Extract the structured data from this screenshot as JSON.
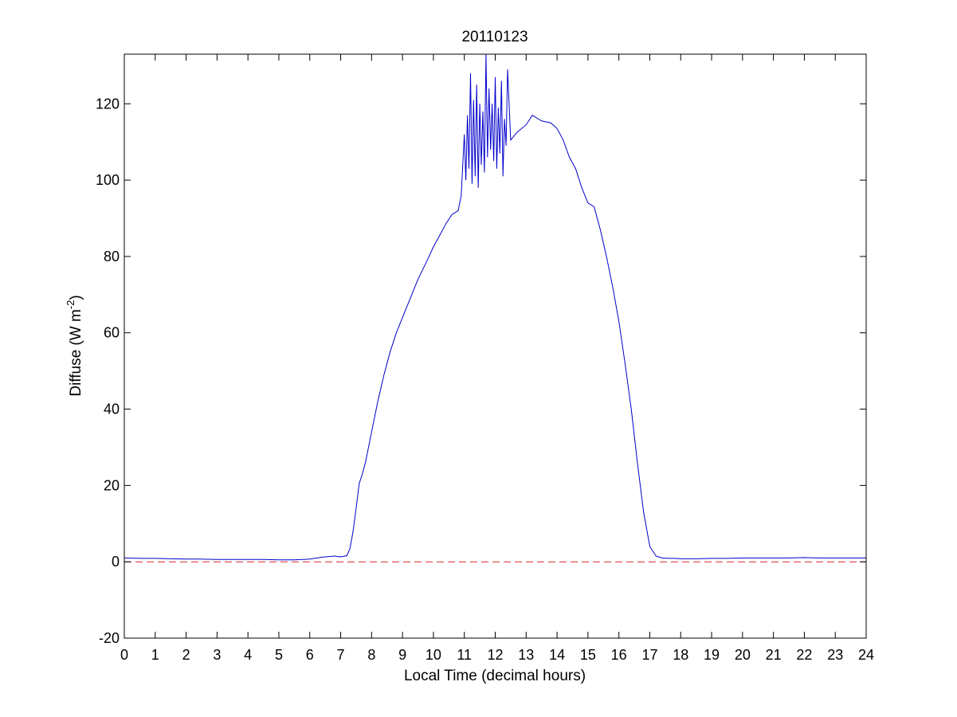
{
  "chart_data": {
    "type": "line",
    "title": "20110123",
    "xlabel": "Local Time (decimal hours)",
    "ylabel": {
      "prefix": "Diffuse (W m",
      "superscript": "-2",
      "suffix": ")"
    },
    "xlim": [
      0,
      24
    ],
    "ylim": [
      -20,
      133
    ],
    "xticks": [
      0,
      1,
      2,
      3,
      4,
      5,
      6,
      7,
      8,
      9,
      10,
      11,
      12,
      13,
      14,
      15,
      16,
      17,
      18,
      19,
      20,
      21,
      22,
      23,
      24
    ],
    "yticks": [
      -20,
      0,
      20,
      40,
      60,
      80,
      100,
      120
    ],
    "grid": false,
    "series": [
      {
        "color": "#0000cc",
        "style": "solid",
        "x": [
          0,
          0.5,
          1,
          1.5,
          2,
          2.5,
          3,
          3.5,
          4,
          4.5,
          5,
          5.5,
          6,
          6.4,
          6.8,
          7.0,
          7.2,
          7.3,
          7.4,
          7.5,
          7.6,
          7.7,
          7.8,
          8.0,
          8.2,
          8.4,
          8.6,
          8.8,
          9.0,
          9.2,
          9.5,
          9.8,
          10.0,
          10.2,
          10.4,
          10.6,
          10.8,
          10.9,
          11.0,
          11.05,
          11.1,
          11.15,
          11.2,
          11.25,
          11.3,
          11.35,
          11.4,
          11.45,
          11.5,
          11.55,
          11.6,
          11.65,
          11.7,
          11.75,
          11.8,
          11.85,
          11.9,
          11.95,
          12.0,
          12.05,
          12.1,
          12.15,
          12.2,
          12.25,
          12.3,
          12.35,
          12.4,
          12.5,
          12.7,
          13.0,
          13.2,
          13.5,
          13.8,
          14.0,
          14.2,
          14.4,
          14.6,
          14.8,
          15.0,
          15.2,
          15.4,
          15.6,
          15.8,
          16.0,
          16.2,
          16.4,
          16.6,
          16.8,
          17.0,
          17.2,
          17.4,
          17.6,
          17.8,
          18.0,
          18.5,
          19,
          19.5,
          20,
          20.5,
          21,
          21.5,
          22,
          22.5,
          23,
          23.5,
          24
        ],
        "y": [
          1.0,
          0.9,
          0.9,
          0.8,
          0.7,
          0.7,
          0.6,
          0.6,
          0.6,
          0.6,
          0.5,
          0.5,
          0.7,
          1.2,
          1.5,
          1.3,
          1.6,
          3.5,
          8.0,
          14.0,
          20.5,
          23.0,
          26.0,
          34.0,
          42.0,
          49.0,
          55.0,
          60.0,
          64.0,
          68.0,
          74.0,
          79.0,
          82.5,
          85.5,
          88.5,
          91.0,
          92.0,
          96.0,
          112.0,
          100.0,
          117.0,
          103.0,
          128.0,
          99.0,
          121.0,
          101.0,
          125.0,
          98.0,
          120.0,
          104.0,
          118.0,
          102.0,
          133.0,
          106.0,
          124.0,
          108.0,
          120.0,
          105.0,
          127.0,
          103.0,
          119.0,
          107.0,
          126.0,
          101.0,
          116.0,
          109.0,
          129.0,
          110.5,
          112.5,
          114.5,
          117.0,
          115.5,
          115.0,
          113.5,
          110.5,
          106.0,
          103.0,
          98.0,
          94.0,
          93.0,
          87.0,
          80.0,
          72.0,
          63.0,
          52.0,
          40.0,
          26.0,
          13.0,
          4.0,
          1.5,
          1.0,
          0.9,
          0.9,
          0.8,
          0.8,
          0.9,
          0.9,
          1.0,
          1.0,
          1.0,
          1.0,
          1.1,
          1.0,
          1.0,
          1.0,
          1.0
        ]
      },
      {
        "color": "#dd2222",
        "style": "dashed",
        "x": [
          0,
          24
        ],
        "y": [
          0,
          0
        ]
      }
    ]
  }
}
